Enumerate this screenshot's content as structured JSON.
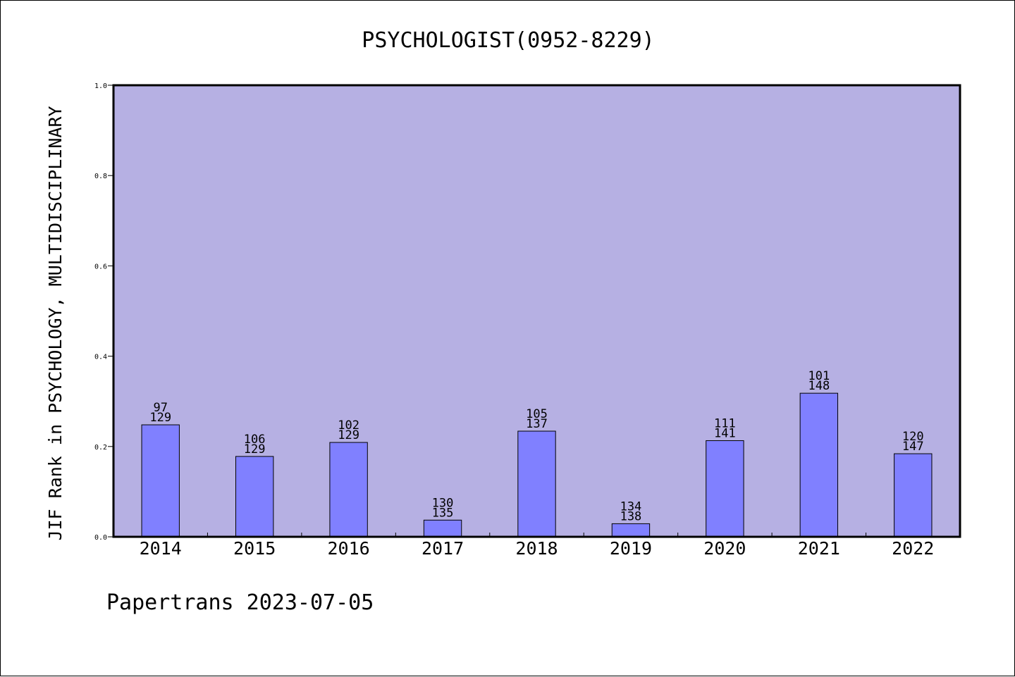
{
  "chart_data": {
    "type": "bar",
    "title": "PSYCHOLOGIST(0952-8229)",
    "xlabel": "",
    "ylabel": "JIF Rank in PSYCHOLOGY, MULTIDISCIPLINARY",
    "ylim": [
      0,
      1.0
    ],
    "yticks": [
      "0.0",
      "0.2",
      "0.4",
      "0.6",
      "0.8",
      "1.0"
    ],
    "categories": [
      "2014",
      "2015",
      "2016",
      "2017",
      "2018",
      "2019",
      "2020",
      "2021",
      "2022"
    ],
    "values": [
      0.248,
      0.178,
      0.209,
      0.037,
      0.234,
      0.029,
      0.213,
      0.318,
      0.184
    ],
    "labels": [
      {
        "rank": "97",
        "total": "129"
      },
      {
        "rank": "106",
        "total": "129"
      },
      {
        "rank": "102",
        "total": "129"
      },
      {
        "rank": "130",
        "total": "135"
      },
      {
        "rank": "105",
        "total": "137"
      },
      {
        "rank": "134",
        "total": "138"
      },
      {
        "rank": "111",
        "total": "141"
      },
      {
        "rank": "101",
        "total": "148"
      },
      {
        "rank": "120",
        "total": "147"
      }
    ],
    "grid": false,
    "legend": "none",
    "colors": {
      "plot_bg": "#b6b0e3",
      "bar": "#8080ff"
    }
  },
  "footer": {
    "text": "Papertrans 2023-07-05"
  }
}
